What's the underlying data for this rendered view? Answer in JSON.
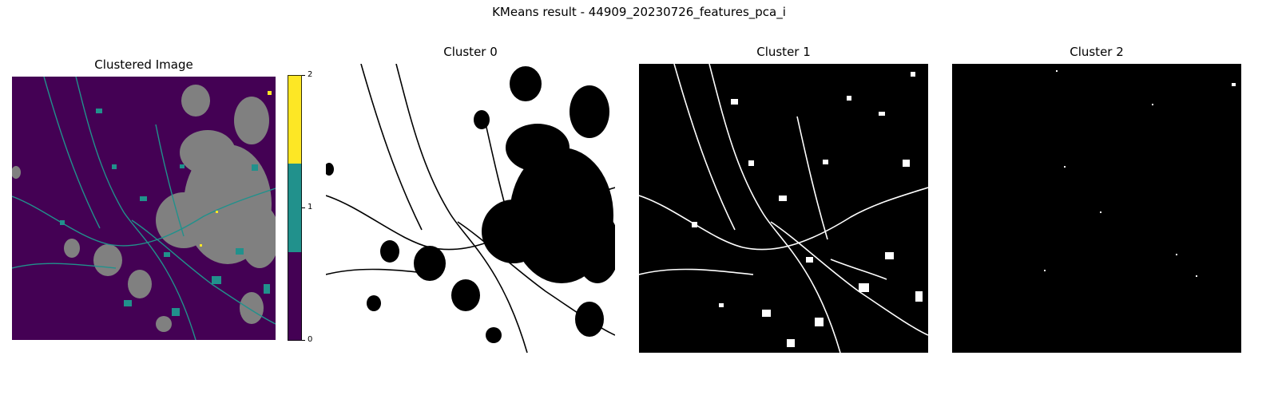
{
  "figure": {
    "title": "KMeans result - 44909_20230726_features_pca_i"
  },
  "panels": [
    {
      "title": "Clustered Image",
      "kind": "categorical-map"
    },
    {
      "title": "Cluster 0",
      "kind": "binary-mask"
    },
    {
      "title": "Cluster 1",
      "kind": "binary-mask"
    },
    {
      "title": "Cluster 2",
      "kind": "binary-mask"
    }
  ],
  "colorbar": {
    "ticks": [
      "0",
      "1",
      "2"
    ],
    "colors": [
      "#440154",
      "#21918c",
      "#fde725"
    ]
  },
  "colors": {
    "urban_gray": "#808080",
    "mask_on": "#ffffff",
    "mask_off": "#000000"
  }
}
